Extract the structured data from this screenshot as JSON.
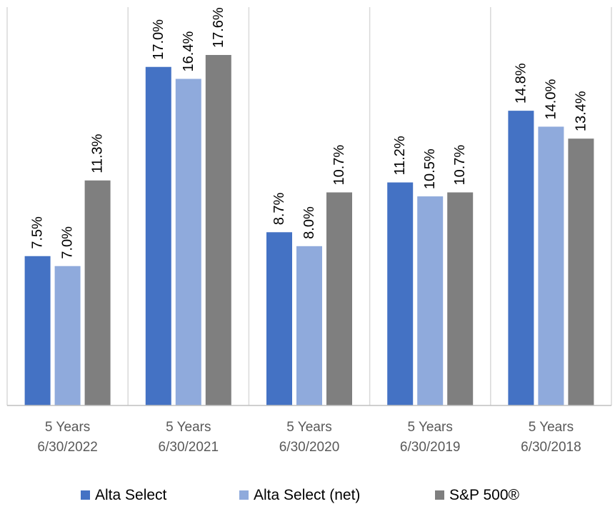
{
  "chart_data": {
    "type": "bar",
    "categories": [
      [
        "5 Years",
        "6/30/2022"
      ],
      [
        "5 Years",
        "6/30/2021"
      ],
      [
        "5 Years",
        "6/30/2020"
      ],
      [
        "5 Years",
        "6/30/2019"
      ],
      [
        "5 Years",
        "6/30/2018"
      ]
    ],
    "series": [
      {
        "name": "Alta Select",
        "color": "#4472C4",
        "values": [
          7.5,
          17.0,
          8.7,
          11.2,
          14.8
        ],
        "labels": [
          "7.5%",
          "17.0%",
          "8.7%",
          "11.2%",
          "14.8%"
        ]
      },
      {
        "name": "Alta Select (net)",
        "color": "#8FAADC",
        "values": [
          7.0,
          16.4,
          8.0,
          10.5,
          14.0
        ],
        "labels": [
          "7.0%",
          "16.4%",
          "8.0%",
          "10.5%",
          "14.0%"
        ]
      },
      {
        "name": "S&P 500®",
        "color": "#7F7F7F",
        "values": [
          11.3,
          17.6,
          10.7,
          10.7,
          13.4
        ],
        "labels": [
          "11.3%",
          "17.6%",
          "10.7%",
          "10.7%",
          "13.4%"
        ]
      }
    ],
    "title": "",
    "xlabel": "",
    "ylabel": "",
    "ylim": [
      0,
      17.6
    ],
    "grid": "vertical separators between groups",
    "legend_position": "bottom"
  }
}
